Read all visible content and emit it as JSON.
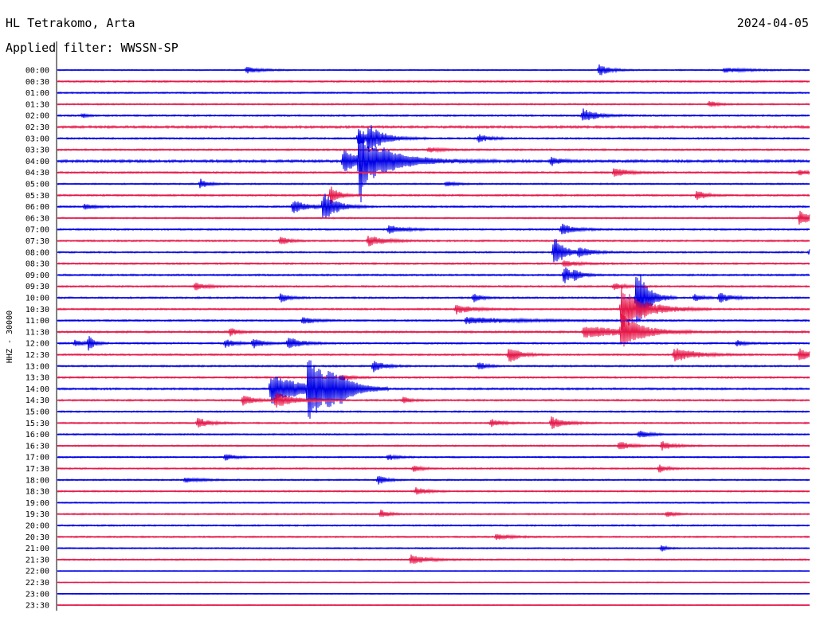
{
  "header": {
    "station": "HL Tetrakomo, Arta",
    "date": "2024-04-05",
    "filter": "Applied filter: WWSSN-SP"
  },
  "chart_data": {
    "type": "line",
    "title": "HL Tetrakomo, Arta",
    "ylabel": "HHZ - 30000",
    "colors": {
      "odd": "#0000e6",
      "even": "#e6184a",
      "axis": "#000000",
      "background": "#ffffff"
    },
    "x_unit": "minutes within half-hour row",
    "x_range": [
      0,
      30
    ],
    "rows": [
      "00:00",
      "00:30",
      "01:00",
      "01:30",
      "02:00",
      "02:30",
      "03:00",
      "03:30",
      "04:00",
      "04:30",
      "05:00",
      "05:30",
      "06:00",
      "06:30",
      "07:00",
      "07:30",
      "08:00",
      "08:30",
      "09:00",
      "09:30",
      "10:00",
      "10:30",
      "11:00",
      "11:30",
      "12:00",
      "12:30",
      "13:00",
      "13:30",
      "14:00",
      "14:30",
      "15:00",
      "15:30",
      "16:00",
      "16:30",
      "17:00",
      "17:30",
      "18:00",
      "18:30",
      "19:00",
      "19:30",
      "20:00",
      "20:30",
      "21:00",
      "21:30",
      "22:00",
      "22:30",
      "23:00",
      "23:30"
    ],
    "noise": [
      0.6,
      0.8,
      0.7,
      0.7,
      0.8,
      1.1,
      0.8,
      0.8,
      1.2,
      0.8,
      0.7,
      0.8,
      0.8,
      0.7,
      0.8,
      0.8,
      0.8,
      0.8,
      0.8,
      0.8,
      0.8,
      0.8,
      0.8,
      0.9,
      0.8,
      0.8,
      0.8,
      0.8,
      0.9,
      0.8,
      0.7,
      0.7,
      0.7,
      0.7,
      0.7,
      0.7,
      0.7,
      0.7,
      0.6,
      0.7,
      0.7,
      0.7,
      0.6,
      0.7,
      0.4,
      0.4,
      0.5,
      0.5
    ],
    "events": [
      {
        "row": 0,
        "t": 7.55,
        "amp": 4,
        "dur": 0.5
      },
      {
        "row": 0,
        "t": 21.6,
        "amp": 8,
        "dur": 0.4
      },
      {
        "row": 0,
        "t": 26.6,
        "amp": 3,
        "dur": 0.9
      },
      {
        "row": 3,
        "t": 26.0,
        "amp": 4,
        "dur": 0.3
      },
      {
        "row": 4,
        "t": 1.0,
        "amp": 3,
        "dur": 0.2
      },
      {
        "row": 4,
        "t": 20.95,
        "amp": 9,
        "dur": 0.5
      },
      {
        "row": 6,
        "t": 12.0,
        "amp": 12,
        "dur": 0.3
      },
      {
        "row": 6,
        "t": 12.4,
        "amp": 17,
        "dur": 0.6
      },
      {
        "row": 6,
        "t": 16.8,
        "amp": 5,
        "dur": 0.4
      },
      {
        "row": 7,
        "t": 14.8,
        "amp": 3,
        "dur": 0.5
      },
      {
        "row": 8,
        "t": 11.4,
        "amp": 14,
        "dur": 0.9
      },
      {
        "row": 8,
        "t": 12.05,
        "amp": 55,
        "dur": 0.3
      },
      {
        "row": 8,
        "t": 12.6,
        "amp": 12,
        "dur": 0.6
      },
      {
        "row": 8,
        "t": 13.0,
        "amp": 9,
        "dur": 1.5
      },
      {
        "row": 8,
        "t": 19.7,
        "amp": 6,
        "dur": 0.3
      },
      {
        "row": 9,
        "t": 22.2,
        "amp": 6,
        "dur": 0.5
      },
      {
        "row": 9,
        "t": 29.6,
        "amp": 4,
        "dur": 0.3
      },
      {
        "row": 10,
        "t": 5.7,
        "amp": 6,
        "dur": 0.3
      },
      {
        "row": 10,
        "t": 15.5,
        "amp": 3,
        "dur": 0.4
      },
      {
        "row": 11,
        "t": 10.9,
        "amp": 12,
        "dur": 0.3
      },
      {
        "row": 11,
        "t": 25.5,
        "amp": 7,
        "dur": 0.3
      },
      {
        "row": 12,
        "t": 1.1,
        "amp": 4,
        "dur": 0.3
      },
      {
        "row": 12,
        "t": 9.4,
        "amp": 8,
        "dur": 0.6
      },
      {
        "row": 12,
        "t": 10.6,
        "amp": 18,
        "dur": 0.5
      },
      {
        "row": 13,
        "t": 29.6,
        "amp": 9,
        "dur": 0.5
      },
      {
        "row": 14,
        "t": 13.2,
        "amp": 5,
        "dur": 0.6
      },
      {
        "row": 14,
        "t": 20.1,
        "amp": 7,
        "dur": 0.5
      },
      {
        "row": 15,
        "t": 8.9,
        "amp": 6,
        "dur": 0.3
      },
      {
        "row": 15,
        "t": 12.4,
        "amp": 7,
        "dur": 0.6
      },
      {
        "row": 16,
        "t": 19.8,
        "amp": 20,
        "dur": 0.4
      },
      {
        "row": 16,
        "t": 20.8,
        "amp": 6,
        "dur": 0.5
      },
      {
        "row": 16,
        "t": 30.0,
        "amp": 4,
        "dur": 0.3
      },
      {
        "row": 17,
        "t": 20.2,
        "amp": 4,
        "dur": 0.5
      },
      {
        "row": 18,
        "t": 20.2,
        "amp": 12,
        "dur": 0.3
      },
      {
        "row": 18,
        "t": 20.6,
        "amp": 6,
        "dur": 0.3
      },
      {
        "row": 19,
        "t": 5.5,
        "amp": 5,
        "dur": 0.4
      },
      {
        "row": 19,
        "t": 22.2,
        "amp": 4,
        "dur": 0.4
      },
      {
        "row": 20,
        "t": 8.9,
        "amp": 6,
        "dur": 0.3
      },
      {
        "row": 20,
        "t": 16.6,
        "amp": 6,
        "dur": 0.3
      },
      {
        "row": 20,
        "t": 25.4,
        "amp": 5,
        "dur": 0.3
      },
      {
        "row": 20,
        "t": 26.4,
        "amp": 6,
        "dur": 0.5
      },
      {
        "row": 20,
        "t": 23.1,
        "amp": 45,
        "dur": 0.4
      },
      {
        "row": 21,
        "t": 15.9,
        "amp": 6,
        "dur": 0.6
      },
      {
        "row": 21,
        "t": 22.5,
        "amp": 28,
        "dur": 0.9
      },
      {
        "row": 22,
        "t": 9.8,
        "amp": 5,
        "dur": 0.4
      },
      {
        "row": 22,
        "t": 16.3,
        "amp": 4,
        "dur": 2.0
      },
      {
        "row": 23,
        "t": 6.9,
        "amp": 5,
        "dur": 0.3
      },
      {
        "row": 23,
        "t": 21.0,
        "amp": 8,
        "dur": 1.5
      },
      {
        "row": 23,
        "t": 22.5,
        "amp": 22,
        "dur": 0.7
      },
      {
        "row": 24,
        "t": 0.7,
        "amp": 4,
        "dur": 0.3
      },
      {
        "row": 24,
        "t": 1.25,
        "amp": 10,
        "dur": 0.2
      },
      {
        "row": 24,
        "t": 6.7,
        "amp": 5,
        "dur": 0.4
      },
      {
        "row": 24,
        "t": 7.8,
        "amp": 6,
        "dur": 0.4
      },
      {
        "row": 24,
        "t": 9.2,
        "amp": 8,
        "dur": 0.5
      },
      {
        "row": 24,
        "t": 27.1,
        "amp": 4,
        "dur": 0.3
      },
      {
        "row": 25,
        "t": 18.0,
        "amp": 12,
        "dur": 0.4
      },
      {
        "row": 25,
        "t": 24.6,
        "amp": 9,
        "dur": 0.8
      },
      {
        "row": 25,
        "t": 29.6,
        "amp": 8,
        "dur": 0.5
      },
      {
        "row": 26,
        "t": 12.6,
        "amp": 7,
        "dur": 0.4
      },
      {
        "row": 26,
        "t": 16.8,
        "amp": 5,
        "dur": 0.3
      },
      {
        "row": 27,
        "t": 11.3,
        "amp": 4,
        "dur": 0.4
      },
      {
        "row": 28,
        "t": 8.5,
        "amp": 20,
        "dur": 1.2
      },
      {
        "row": 28,
        "t": 10.0,
        "amp": 40,
        "dur": 0.8
      },
      {
        "row": 28,
        "t": 10.8,
        "amp": 12,
        "dur": 0.6
      },
      {
        "row": 28,
        "t": 11.3,
        "amp": 7,
        "dur": 0.4
      },
      {
        "row": 29,
        "t": 7.4,
        "amp": 7,
        "dur": 0.4
      },
      {
        "row": 29,
        "t": 8.7,
        "amp": 10,
        "dur": 0.7
      },
      {
        "row": 29,
        "t": 13.8,
        "amp": 4,
        "dur": 0.3
      },
      {
        "row": 31,
        "t": 5.6,
        "amp": 7,
        "dur": 0.4
      },
      {
        "row": 31,
        "t": 17.3,
        "amp": 5,
        "dur": 0.4
      },
      {
        "row": 31,
        "t": 19.7,
        "amp": 8,
        "dur": 0.5
      },
      {
        "row": 32,
        "t": 23.2,
        "amp": 5,
        "dur": 0.4
      },
      {
        "row": 33,
        "t": 22.4,
        "amp": 6,
        "dur": 0.4
      },
      {
        "row": 33,
        "t": 24.1,
        "amp": 6,
        "dur": 0.4
      },
      {
        "row": 34,
        "t": 6.7,
        "amp": 5,
        "dur": 0.3
      },
      {
        "row": 34,
        "t": 13.2,
        "amp": 4,
        "dur": 0.3
      },
      {
        "row": 35,
        "t": 14.2,
        "amp": 4,
        "dur": 0.3
      },
      {
        "row": 35,
        "t": 24.0,
        "amp": 5,
        "dur": 0.3
      },
      {
        "row": 36,
        "t": 5.1,
        "amp": 3,
        "dur": 0.6
      },
      {
        "row": 36,
        "t": 12.8,
        "amp": 6,
        "dur": 0.3
      },
      {
        "row": 37,
        "t": 14.3,
        "amp": 5,
        "dur": 0.4
      },
      {
        "row": 39,
        "t": 12.9,
        "amp": 5,
        "dur": 0.3
      },
      {
        "row": 39,
        "t": 24.3,
        "amp": 4,
        "dur": 0.3
      },
      {
        "row": 41,
        "t": 17.5,
        "amp": 4,
        "dur": 0.5
      },
      {
        "row": 42,
        "t": 24.1,
        "amp": 4,
        "dur": 0.2
      },
      {
        "row": 43,
        "t": 14.1,
        "amp": 6,
        "dur": 0.6
      }
    ]
  }
}
